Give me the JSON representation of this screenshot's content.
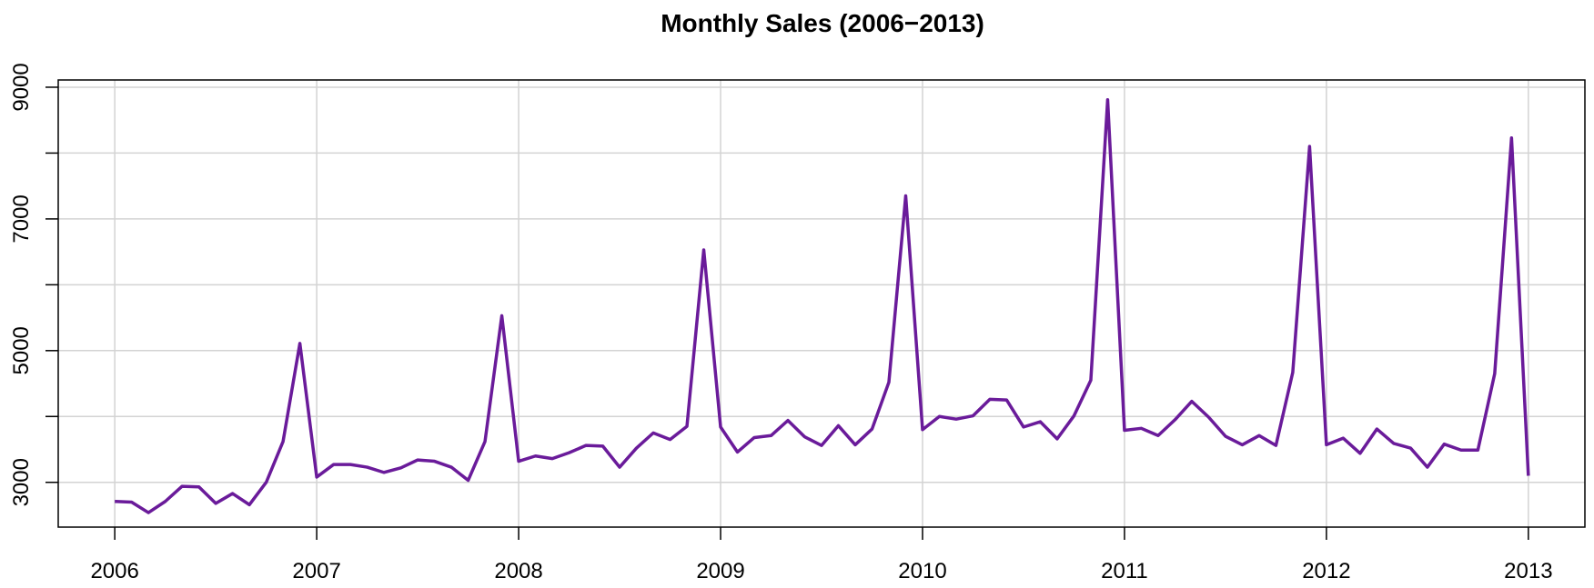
{
  "chart_data": {
    "type": "line",
    "title": "Monthly Sales (2006−2013)",
    "xlabel": "",
    "ylabel": "",
    "x_ticks": [
      "2006",
      "2007",
      "2008",
      "2009",
      "2010",
      "2011",
      "2012",
      "2013"
    ],
    "y_ticks": [
      "3000",
      "5000",
      "7000",
      "9000"
    ],
    "xlim": [
      2005.72,
      2013.28
    ],
    "ylim": [
      2320,
      9110
    ],
    "grid": true,
    "series_color": "#6a1b9a",
    "x_start_label": "2006-01",
    "x_end_label": "2013-01",
    "series": [
      {
        "values": [
          2710,
          2700,
          2540,
          2710,
          2940,
          2930,
          2680,
          2830,
          2660,
          3000,
          3620,
          5110,
          3080,
          3270,
          3270,
          3230,
          3150,
          3220,
          3340,
          3320,
          3230,
          3030,
          3620,
          5530,
          3320,
          3400,
          3360,
          3450,
          3560,
          3550,
          3230,
          3520,
          3750,
          3650,
          3850,
          6530,
          3840,
          3460,
          3680,
          3710,
          3940,
          3690,
          3560,
          3860,
          3570,
          3810,
          4520,
          7350,
          3800,
          4000,
          3960,
          4010,
          4260,
          4250,
          3840,
          3920,
          3660,
          4010,
          4550,
          8810,
          3790,
          3820,
          3710,
          3950,
          4230,
          3990,
          3700,
          3570,
          3710,
          3560,
          4670,
          8100,
          3570,
          3670,
          3440,
          3810,
          3590,
          3520,
          3230,
          3580,
          3490,
          3490,
          4650,
          8230,
          3100
        ]
      }
    ]
  }
}
